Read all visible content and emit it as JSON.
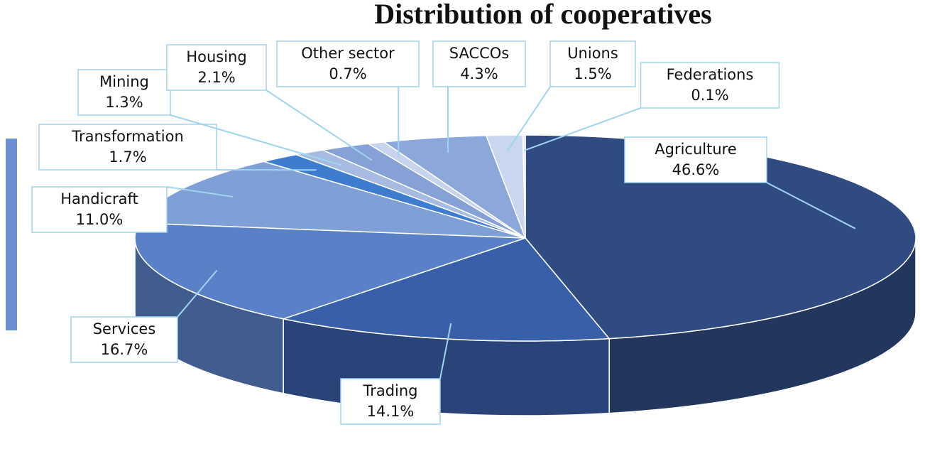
{
  "chart_data": {
    "type": "pie",
    "title": "Distribution of cooperatives",
    "categories": [
      "Agriculture",
      "Trading",
      "Services",
      "Handicraft",
      "Transformation",
      "Mining",
      "Housing",
      "Other sector",
      "SACCOs",
      "Unions",
      "Federations"
    ],
    "values": [
      46.6,
      14.1,
      16.7,
      11.0,
      1.7,
      1.3,
      2.1,
      0.7,
      4.3,
      1.5,
      0.1
    ],
    "value_labels": [
      "46.6%",
      "14.1%",
      "16.7%",
      "11.0%",
      "1.7%",
      "1.3%",
      "2.1%",
      "0.7%",
      "4.3%",
      "1.5%",
      "0.1%"
    ],
    "colors": [
      "#2f4b82",
      "#3a5fa9",
      "#5a81c7",
      "#7f9fd7",
      "#3d7ccf",
      "#a7bbe2",
      "#86a1d6",
      "#c6d4ee",
      "#8ca7d9",
      "#c9d6ef",
      "#dfe7f6"
    ]
  }
}
